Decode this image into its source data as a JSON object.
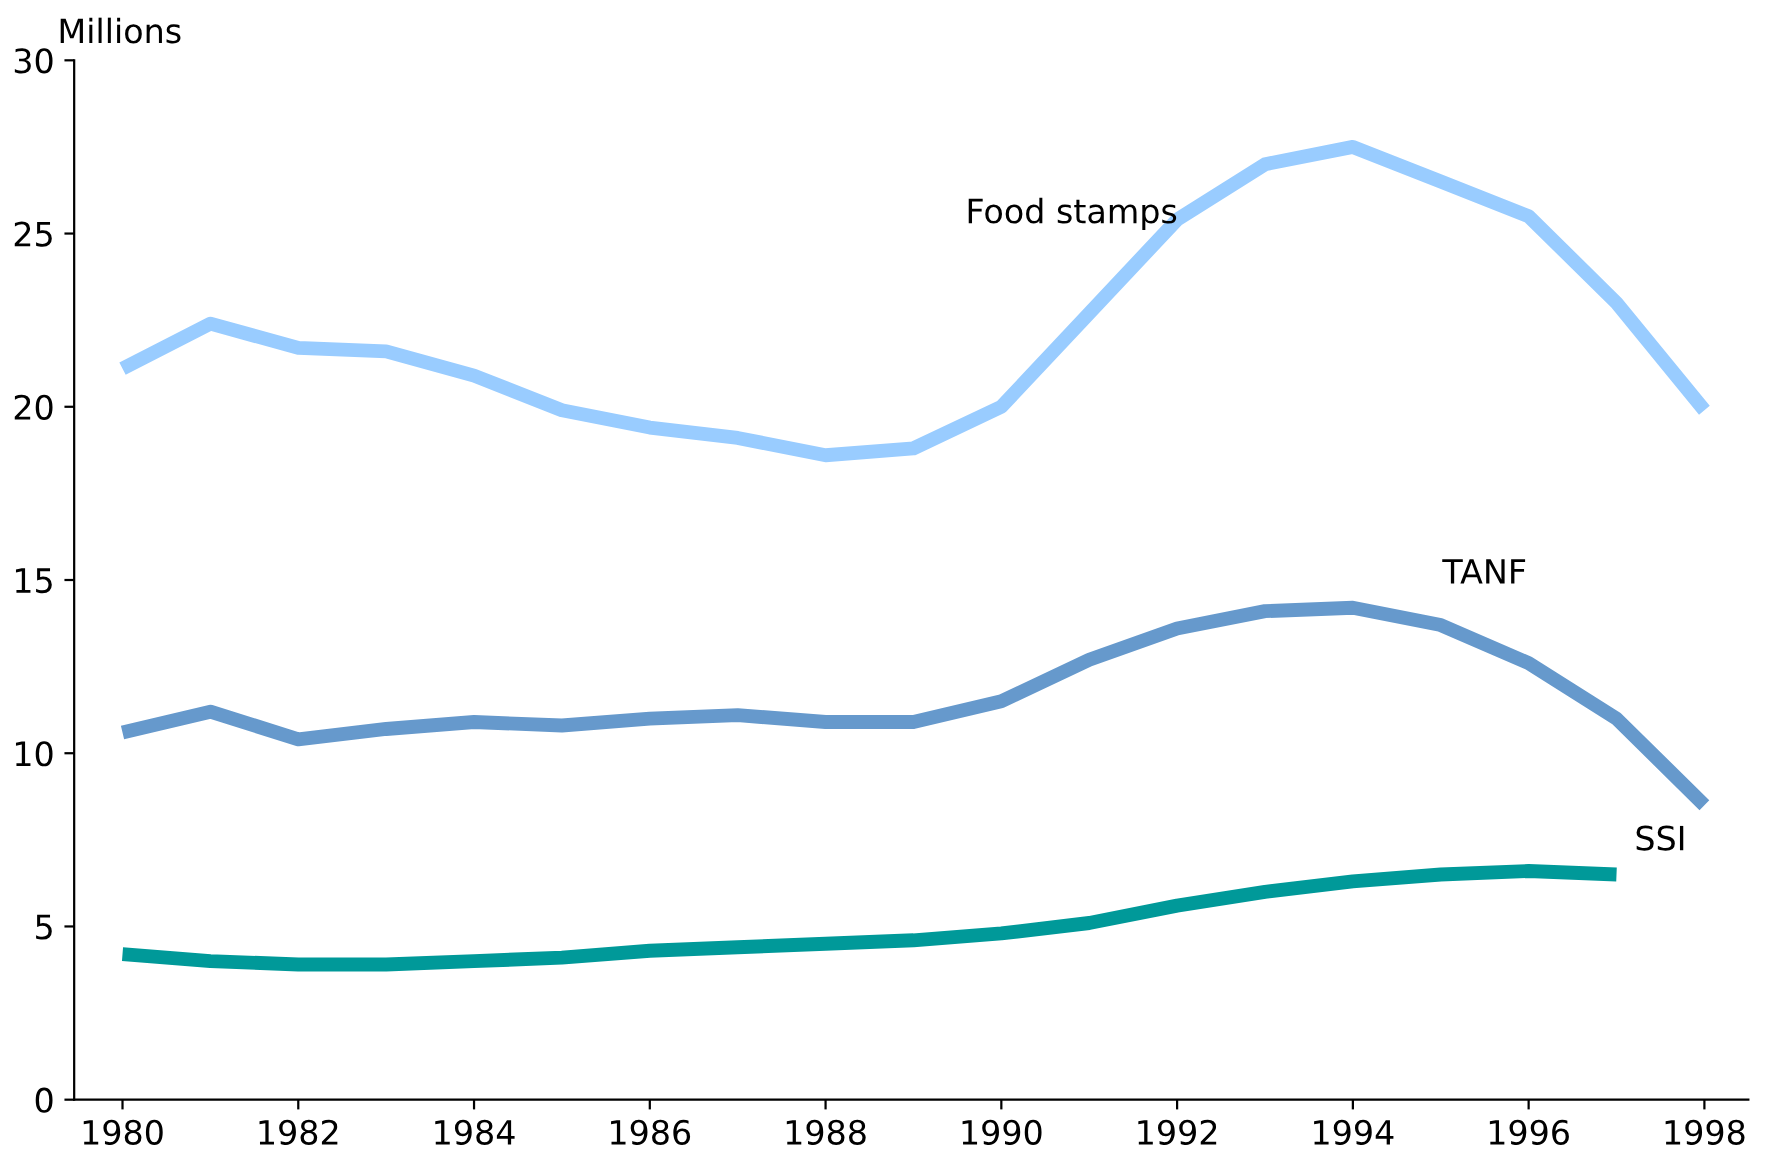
{
  "chart_data": {
    "type": "line",
    "ylabel": "Millions",
    "x": [
      1980,
      1981,
      1982,
      1983,
      1984,
      1985,
      1986,
      1987,
      1988,
      1989,
      1990,
      1991,
      1992,
      1993,
      1994,
      1995,
      1996,
      1997,
      1998
    ],
    "series": [
      {
        "name": "Food stamps",
        "color": "#99ccff",
        "values": [
          21.1,
          22.4,
          21.7,
          21.6,
          20.9,
          19.9,
          19.4,
          19.1,
          18.6,
          18.8,
          20.0,
          22.7,
          25.4,
          27.0,
          27.5,
          26.5,
          25.5,
          23.0,
          19.9
        ]
      },
      {
        "name": "TANF",
        "color": "#6699cc",
        "values": [
          10.6,
          11.2,
          10.4,
          10.7,
          10.9,
          10.8,
          11.0,
          11.1,
          10.9,
          10.9,
          11.5,
          12.7,
          13.6,
          14.1,
          14.2,
          13.7,
          12.6,
          11.0,
          8.5
        ]
      },
      {
        "name": "SSI",
        "color": "#009999",
        "values": [
          4.2,
          4.0,
          3.9,
          3.9,
          4.0,
          4.1,
          4.3,
          4.4,
          4.5,
          4.6,
          4.8,
          5.1,
          5.6,
          6.0,
          6.3,
          6.5,
          6.6,
          6.5,
          null
        ]
      }
    ],
    "xlim": [
      1979.45,
      1998.5
    ],
    "xticks": [
      1980,
      1982,
      1984,
      1986,
      1988,
      1990,
      1992,
      1994,
      1996,
      1998
    ],
    "ylim": [
      0,
      30
    ],
    "yticks": [
      0,
      5,
      10,
      15,
      20,
      25,
      30
    ],
    "grid": false,
    "legend": false,
    "marker": "none",
    "line_style": "solid"
  }
}
